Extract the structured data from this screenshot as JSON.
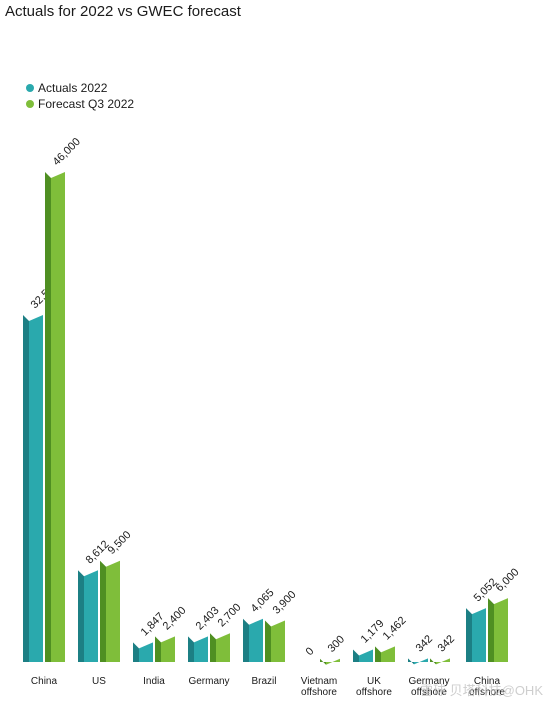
{
  "title": "Actuals for 2022 vs GWEC forecast",
  "colors": {
    "actual_front": "#2aa9ad",
    "actual_side": "#1c7f84",
    "actual_top": "#7fd3d6",
    "forecast_front": "#7fbe3a",
    "forecast_side": "#4f8f22",
    "forecast_top": "#b8e07e"
  },
  "chart_data": {
    "type": "bar",
    "title": "Actuals for 2022 vs GWEC forecast",
    "categories": [
      "China",
      "US",
      "India",
      "Germany",
      "Brazil",
      "Vietnam\noffshore",
      "UK\noffshore",
      "Germany\noffshore",
      "China\noffshore"
    ],
    "series": [
      {
        "name": "Actuals 2022",
        "values": [
          32579,
          8612,
          1847,
          2403,
          4065,
          0,
          1179,
          342,
          5052
        ],
        "labels": [
          "32,579",
          "8,612",
          "1,847",
          "2,403",
          "4,065",
          "0",
          "1,179",
          "342",
          "5,052"
        ]
      },
      {
        "name": "Forecast Q3 2022",
        "values": [
          46000,
          9500,
          2400,
          2700,
          3900,
          300,
          1462,
          342,
          6000
        ],
        "labels": [
          "46,000",
          "9,500",
          "2,400",
          "2,700",
          "3,900",
          "300",
          "1,462",
          "342",
          "6,000"
        ]
      }
    ],
    "ylim": [
      0,
      46000
    ],
    "grid": false,
    "legend": "top-left"
  },
  "watermark": "雪球 贝塔科技@OHK"
}
